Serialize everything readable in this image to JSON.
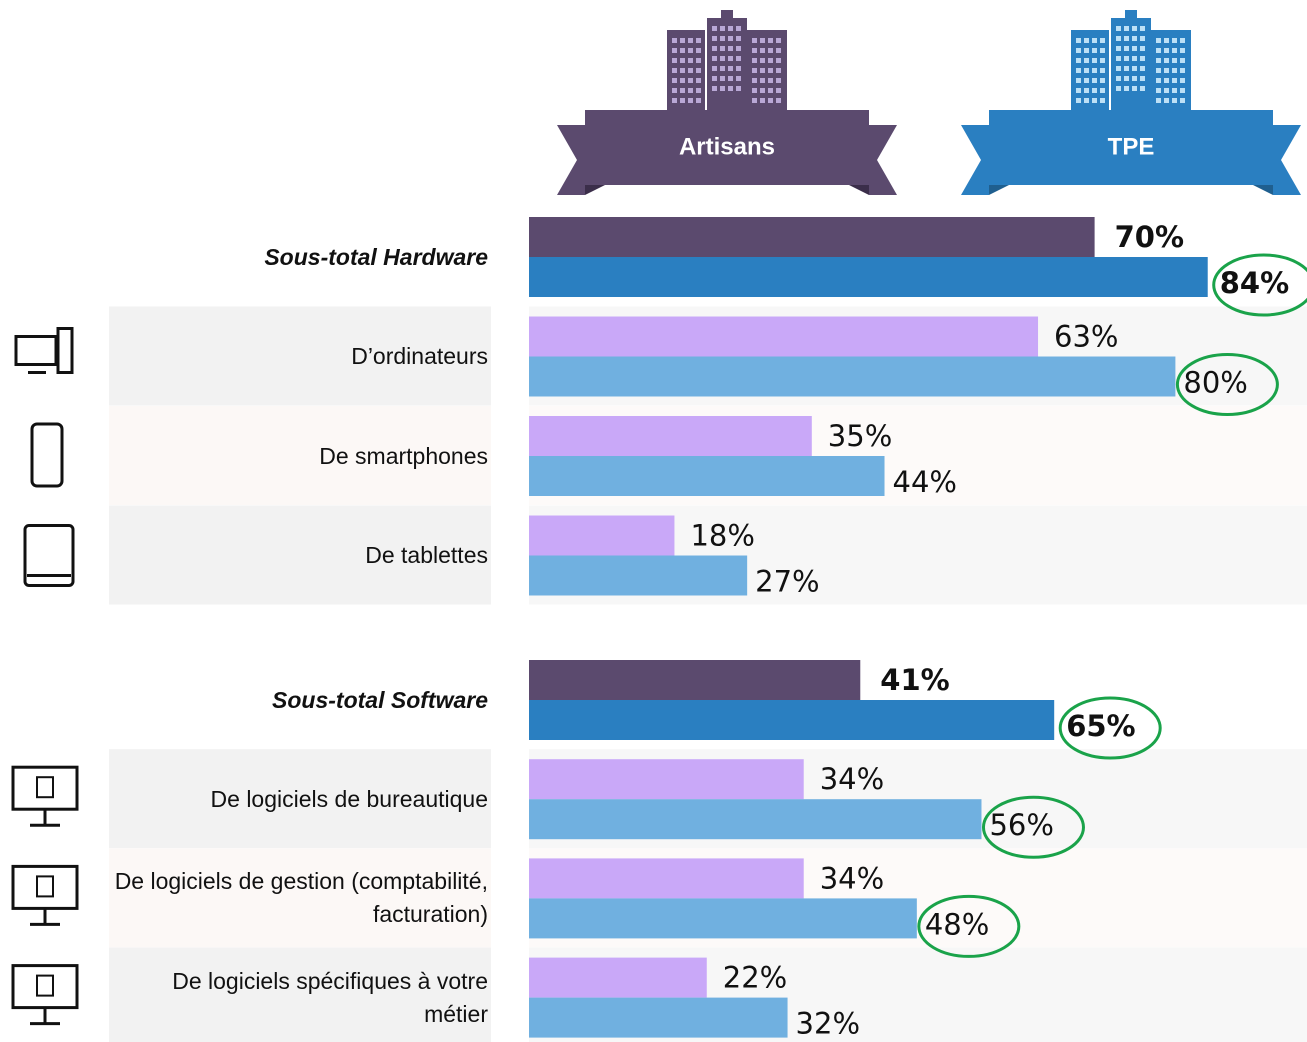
{
  "chart_data": {
    "type": "bar",
    "orientation": "horizontal",
    "categories": [
      "Sous-total Hardware",
      "D’ordinateurs",
      "De smartphones",
      "De tablettes",
      "Sous-total Software",
      "De logiciels de bureautique",
      "De logiciels de gestion (comptabilité, facturation)",
      "De logiciels spécifiques à votre métier"
    ],
    "subtotal": [
      true,
      false,
      false,
      false,
      true,
      false,
      false,
      false
    ],
    "series": [
      {
        "name": "Artisans",
        "color": "#c9a8f8",
        "subtotal_color": "#5b4a6e",
        "values": [
          70,
          63,
          35,
          18,
          41,
          34,
          34,
          22
        ],
        "value_labels": [
          "70%",
          "63%",
          "35%",
          "18%",
          "41%",
          "34%",
          "34%",
          "22%"
        ]
      },
      {
        "name": "TPE",
        "color": "#70b0e0",
        "subtotal_color": "#2a7fc1",
        "values": [
          84,
          80,
          44,
          27,
          65,
          56,
          48,
          32
        ],
        "value_labels": [
          "84%",
          "80%",
          "44%",
          "27%",
          "65%",
          "56%",
          "48%",
          "32%"
        ],
        "highlighted": [
          true,
          true,
          false,
          false,
          true,
          true,
          true,
          false
        ],
        "highlight_color": "#1aa34a"
      }
    ]
  }
}
